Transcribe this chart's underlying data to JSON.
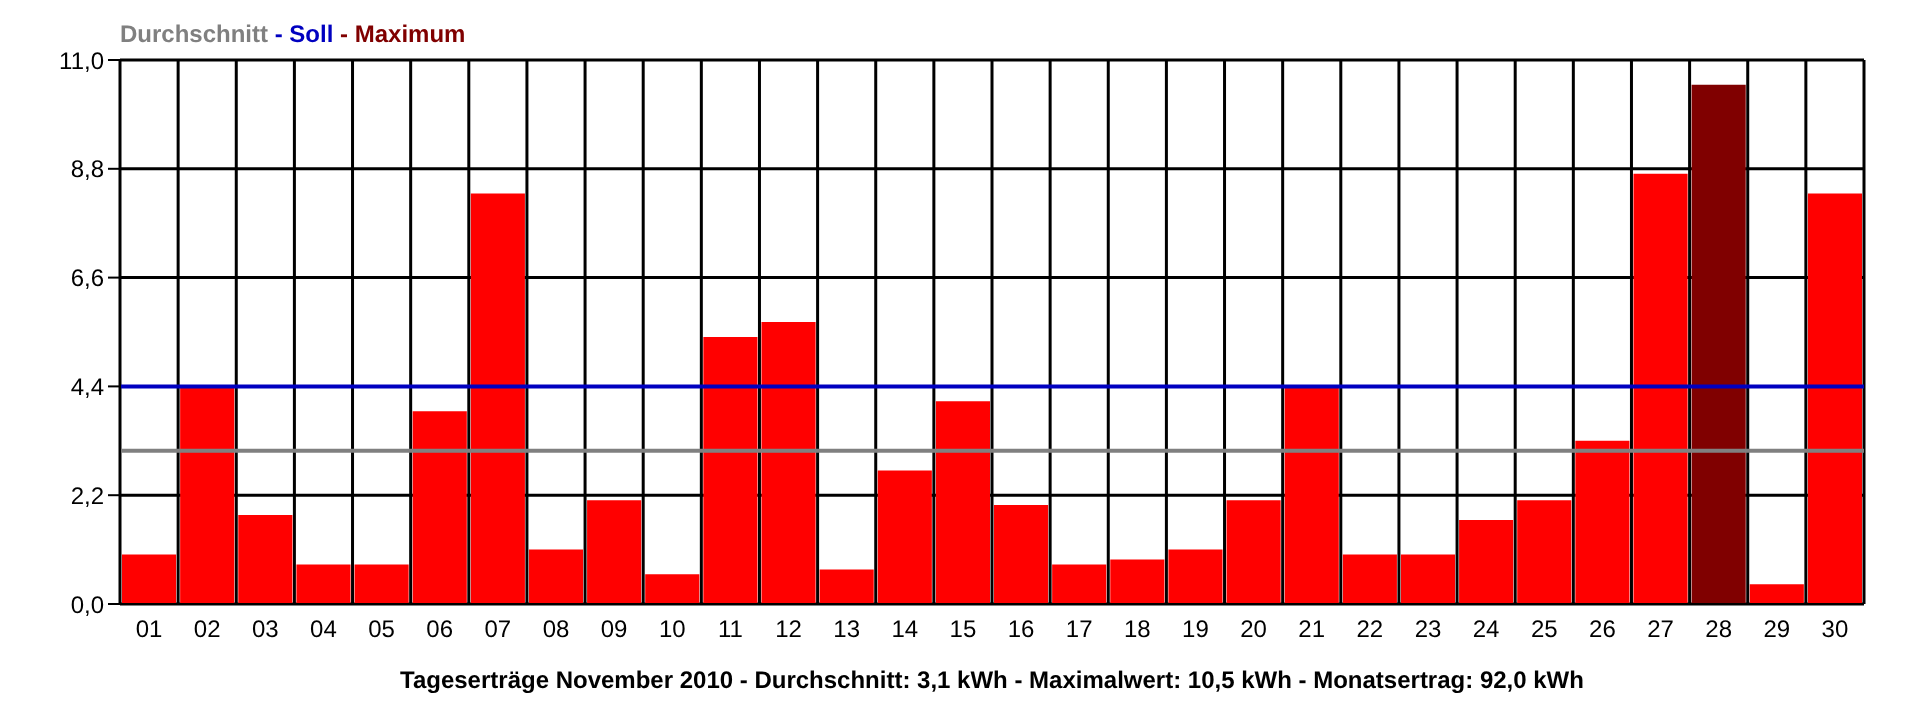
{
  "chart_data": {
    "type": "bar",
    "title": "Durchschnitt - Soll - Maximum",
    "xlabel": "Tageserträge November 2010 - Durchschnitt: 3,1 kWh - Maximalwert: 10,5 kWh - Monatsertrag: 92,0 kWh",
    "categories": [
      "01",
      "02",
      "03",
      "04",
      "05",
      "06",
      "07",
      "08",
      "09",
      "10",
      "11",
      "12",
      "13",
      "14",
      "15",
      "16",
      "17",
      "18",
      "19",
      "20",
      "21",
      "22",
      "23",
      "24",
      "25",
      "26",
      "27",
      "28",
      "29",
      "30"
    ],
    "values": [
      1.0,
      4.4,
      1.8,
      0.8,
      0.8,
      3.9,
      8.3,
      1.1,
      2.1,
      0.6,
      5.4,
      5.7,
      0.7,
      2.7,
      4.1,
      2.0,
      0.8,
      0.9,
      1.1,
      2.1,
      4.4,
      1.0,
      1.0,
      1.7,
      2.1,
      3.3,
      8.7,
      10.5,
      0.4,
      8.3
    ],
    "colors": [
      "#ff0000",
      "#ff0000",
      "#ff0000",
      "#ff0000",
      "#ff0000",
      "#ff0000",
      "#ff0000",
      "#ff0000",
      "#ff0000",
      "#ff0000",
      "#ff0000",
      "#ff0000",
      "#ff0000",
      "#ff0000",
      "#ff0000",
      "#ff0000",
      "#ff0000",
      "#ff0000",
      "#ff0000",
      "#ff0000",
      "#ff0000",
      "#ff0000",
      "#ff0000",
      "#ff0000",
      "#ff0000",
      "#ff0000",
      "#ff0000",
      "#800000",
      "#ff0000",
      "#ff0000"
    ],
    "ylim": [
      0,
      11
    ],
    "yticks": [
      {
        "value": 0,
        "label": "0,0"
      },
      {
        "value": 2.2,
        "label": "2,2"
      },
      {
        "value": 4.4,
        "label": "4,4"
      },
      {
        "value": 6.6,
        "label": "6,6"
      },
      {
        "value": 8.8,
        "label": "8,8"
      },
      {
        "value": 11,
        "label": "11,0"
      }
    ],
    "grid": true,
    "ref_lines": [
      {
        "axis": "y",
        "value": 3.1,
        "color": "#808080"
      },
      {
        "axis": "y",
        "value": 4.4,
        "color": "#0000c0"
      }
    ]
  }
}
